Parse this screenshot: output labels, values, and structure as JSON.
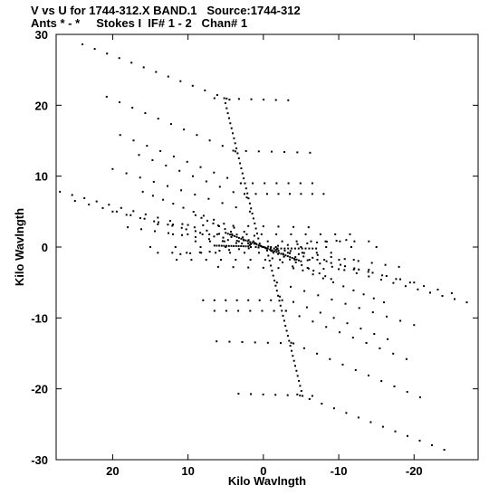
{
  "chart_data": {
    "type": "scatter",
    "title_line1": "V vs U for 1744-312.X BAND.1   Source:1744-312",
    "title_line2": "Ants * - *     Stokes I  IF# 1 - 2   Chan# 1",
    "xlabel": "Kilo Wavlngth",
    "ylabel": "Kilo Wavlngth",
    "xlim": [
      27.5,
      -28.5
    ],
    "ylim": [
      -30,
      30
    ],
    "x_ticks": [
      20,
      10,
      0,
      -10,
      -20
    ],
    "x_tick_labels": [
      "20",
      "10",
      "0",
      "-10",
      "-20"
    ],
    "y_ticks": [
      30,
      20,
      10,
      0,
      -10,
      -20,
      -30
    ],
    "y_tick_labels": [
      "30",
      "20",
      "10",
      "0",
      "-10",
      "-20",
      "-30"
    ],
    "point_color": "#000000",
    "tracks": [
      {
        "from": [
          24,
          28.6
        ],
        "to": [
          4.5,
          20.8
        ],
        "n": 13
      },
      {
        "from": [
          6.5,
          21.0
        ],
        "to": [
          -3.3,
          20.7
        ],
        "n": 7
      },
      {
        "from": [
          20.8,
          21.2
        ],
        "to": [
          3.7,
          13.5
        ],
        "n": 11
      },
      {
        "from": [
          4.0,
          13.6
        ],
        "to": [
          -6.2,
          13.3
        ],
        "n": 7
      },
      {
        "from": [
          19.0,
          15.8
        ],
        "to": [
          3.0,
          9.0
        ],
        "n": 10
      },
      {
        "from": [
          3.0,
          9.0
        ],
        "to": [
          -6.5,
          9.0
        ],
        "n": 7
      },
      {
        "from": [
          16.5,
          13.0
        ],
        "to": [
          2.2,
          7.0
        ],
        "n": 9
      },
      {
        "from": [
          2.5,
          7.5
        ],
        "to": [
          -8.0,
          7.5
        ],
        "n": 8
      },
      {
        "from": [
          20.0,
          11.0
        ],
        "to": [
          1.8,
          5.0
        ],
        "n": 11
      },
      {
        "from": [
          27.0,
          7.8
        ],
        "to": [
          1.0,
          0.5
        ],
        "n": 17
      },
      {
        "from": [
          16.0,
          7.8
        ],
        "to": [
          1.2,
          1.6
        ],
        "n": 12
      },
      {
        "from": [
          25.0,
          6.5
        ],
        "to": [
          1.0,
          0.0
        ],
        "n": 14
      },
      {
        "from": [
          20.0,
          5.0
        ],
        "to": [
          -2.0,
          -0.5
        ],
        "n": 13
      },
      {
        "from": [
          18.0,
          2.8
        ],
        "to": [
          0.0,
          0.0
        ],
        "n": 11
      },
      {
        "from": [
          14.0,
          3.2
        ],
        "to": [
          -6.0,
          2.8
        ],
        "n": 11
      },
      {
        "from": [
          12.0,
          1.8
        ],
        "to": [
          -11.5,
          1.8
        ],
        "n": 13
      },
      {
        "from": [
          9.0,
          0.8
        ],
        "to": [
          -14.0,
          0.8
        ],
        "n": 13
      },
      {
        "from": [
          6.5,
          0.2
        ],
        "to": [
          2.0,
          0.1
        ],
        "n": 15
      },
      {
        "from": [
          -0.5,
          -0.2
        ],
        "to": [
          -7.0,
          -0.2
        ],
        "n": 15
      },
      {
        "from": [
          -27.0,
          -7.8
        ],
        "to": [
          -1.0,
          -0.5
        ],
        "n": 17
      },
      {
        "from": [
          -16.0,
          -7.8
        ],
        "to": [
          -1.2,
          -1.6
        ],
        "n": 12
      },
      {
        "from": [
          -25.0,
          -6.5
        ],
        "to": [
          -1.0,
          0.0
        ],
        "n": 14
      },
      {
        "from": [
          -20.0,
          -5.0
        ],
        "to": [
          2.0,
          0.5
        ],
        "n": 13
      },
      {
        "from": [
          -18.0,
          -2.8
        ],
        "to": [
          0.0,
          0.0
        ],
        "n": 11
      },
      {
        "from": [
          -14.0,
          -3.2
        ],
        "to": [
          6.0,
          -2.8
        ],
        "n": 11
      },
      {
        "from": [
          -12.0,
          -1.8
        ],
        "to": [
          11.5,
          -1.8
        ],
        "n": 13
      },
      {
        "from": [
          -9.0,
          -0.8
        ],
        "to": [
          14.0,
          -0.8
        ],
        "n": 13
      },
      {
        "from": [
          -20.0,
          -11.0
        ],
        "to": [
          -1.8,
          -5.0
        ],
        "n": 11
      },
      {
        "from": [
          -16.5,
          -13.0
        ],
        "to": [
          -2.2,
          -7.0
        ],
        "n": 9
      },
      {
        "from": [
          -2.5,
          -7.5
        ],
        "to": [
          8.0,
          -7.5
        ],
        "n": 8
      },
      {
        "from": [
          -19.0,
          -15.8
        ],
        "to": [
          -3.0,
          -9.0
        ],
        "n": 10
      },
      {
        "from": [
          -3.0,
          -9.0
        ],
        "to": [
          6.5,
          -9.0
        ],
        "n": 7
      },
      {
        "from": [
          -20.8,
          -21.2
        ],
        "to": [
          -3.7,
          -13.5
        ],
        "n": 11
      },
      {
        "from": [
          -4.0,
          -13.6
        ],
        "to": [
          6.2,
          -13.3
        ],
        "n": 7
      },
      {
        "from": [
          -24.0,
          -28.6
        ],
        "to": [
          -4.5,
          -20.8
        ],
        "n": 13
      },
      {
        "from": [
          -6.5,
          -21.0
        ],
        "to": [
          3.3,
          -20.7
        ],
        "n": 7
      },
      {
        "from": [
          5.2,
          21.0
        ],
        "to": [
          0.5,
          0.5
        ],
        "n": 30
      },
      {
        "from": [
          -0.5,
          -0.5
        ],
        "to": [
          -5.2,
          -21.0
        ],
        "n": 30
      },
      {
        "from": [
          5.0,
          2.0
        ],
        "to": [
          0.0,
          0.0
        ],
        "n": 18
      },
      {
        "from": [
          -5.0,
          -2.0
        ],
        "to": [
          0.0,
          0.0
        ],
        "n": 18
      },
      {
        "from": [
          9.0,
          4.5
        ],
        "to": [
          -9.0,
          -4.5
        ],
        "n": 24
      },
      {
        "from": [
          11.0,
          -1.0
        ],
        "to": [
          -11.0,
          1.0
        ],
        "n": 18
      },
      {
        "from": [
          15.0,
          0.0
        ],
        "to": [
          -15.0,
          0.0
        ],
        "n": 10
      }
    ]
  }
}
